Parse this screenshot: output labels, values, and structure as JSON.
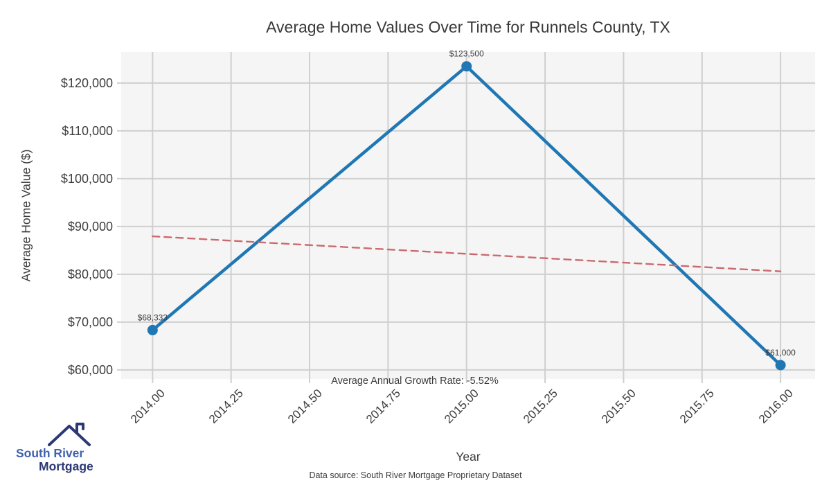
{
  "title": "Average Home Values Over Time for Runnels County, TX",
  "logo": {
    "line1": "South River",
    "line2": "Mortgage"
  },
  "footer": {
    "data_source": "Data source: South River Mortgage Proprietary Dataset"
  },
  "colors": {
    "line": "#1f77b4",
    "trend": "#cb6a6e",
    "plot_bg": "#f5f5f5",
    "grid": "#cfcfcf",
    "text": "#3a3a3a",
    "logo_navy": "#2c3874",
    "logo_blue": "#4063ae"
  },
  "chart_data": {
    "type": "line",
    "title": "Average Home Values Over Time for Runnels County, TX",
    "xlabel": "Year",
    "ylabel": "Average Home Value ($)",
    "x": [
      2014,
      2015,
      2016
    ],
    "series": [
      {
        "name": "Average Home Value",
        "x": [
          2014,
          2015,
          2016
        ],
        "values": [
          68333,
          123500,
          61000
        ],
        "color": "#1f77b4",
        "style": "solid",
        "markers": true,
        "point_labels": [
          "$68,333",
          "$123,500",
          "$61,000"
        ]
      },
      {
        "name": "Linear trend",
        "x": [
          2014,
          2016
        ],
        "values": [
          87944,
          80611
        ],
        "color": "#cb6a6e",
        "style": "dashed",
        "markers": false,
        "point_labels": []
      }
    ],
    "annotation": "Average Annual Growth Rate: -5.52%",
    "x_ticks": [
      {
        "value": 2014.0,
        "label": "2014.00"
      },
      {
        "value": 2014.25,
        "label": "2014.25"
      },
      {
        "value": 2014.5,
        "label": "2014.50"
      },
      {
        "value": 2014.75,
        "label": "2014.75"
      },
      {
        "value": 2015.0,
        "label": "2015.00"
      },
      {
        "value": 2015.25,
        "label": "2015.25"
      },
      {
        "value": 2015.5,
        "label": "2015.50"
      },
      {
        "value": 2015.75,
        "label": "2015.75"
      },
      {
        "value": 2016.0,
        "label": "2016.00"
      }
    ],
    "y_ticks": [
      {
        "value": 60000,
        "label": "$60,000"
      },
      {
        "value": 70000,
        "label": "$70,000"
      },
      {
        "value": 80000,
        "label": "$80,000"
      },
      {
        "value": 90000,
        "label": "$90,000"
      },
      {
        "value": 100000,
        "label": "$100,000"
      },
      {
        "value": 110000,
        "label": "$110,000"
      },
      {
        "value": 120000,
        "label": "$120,000"
      }
    ],
    "xlim": [
      2013.9,
      2016.11
    ],
    "ylim": [
      58100,
      126500
    ],
    "grid": true,
    "legend": "none",
    "plot_bg": "#f5f5f5",
    "grid_color": "#cfcfcf"
  }
}
